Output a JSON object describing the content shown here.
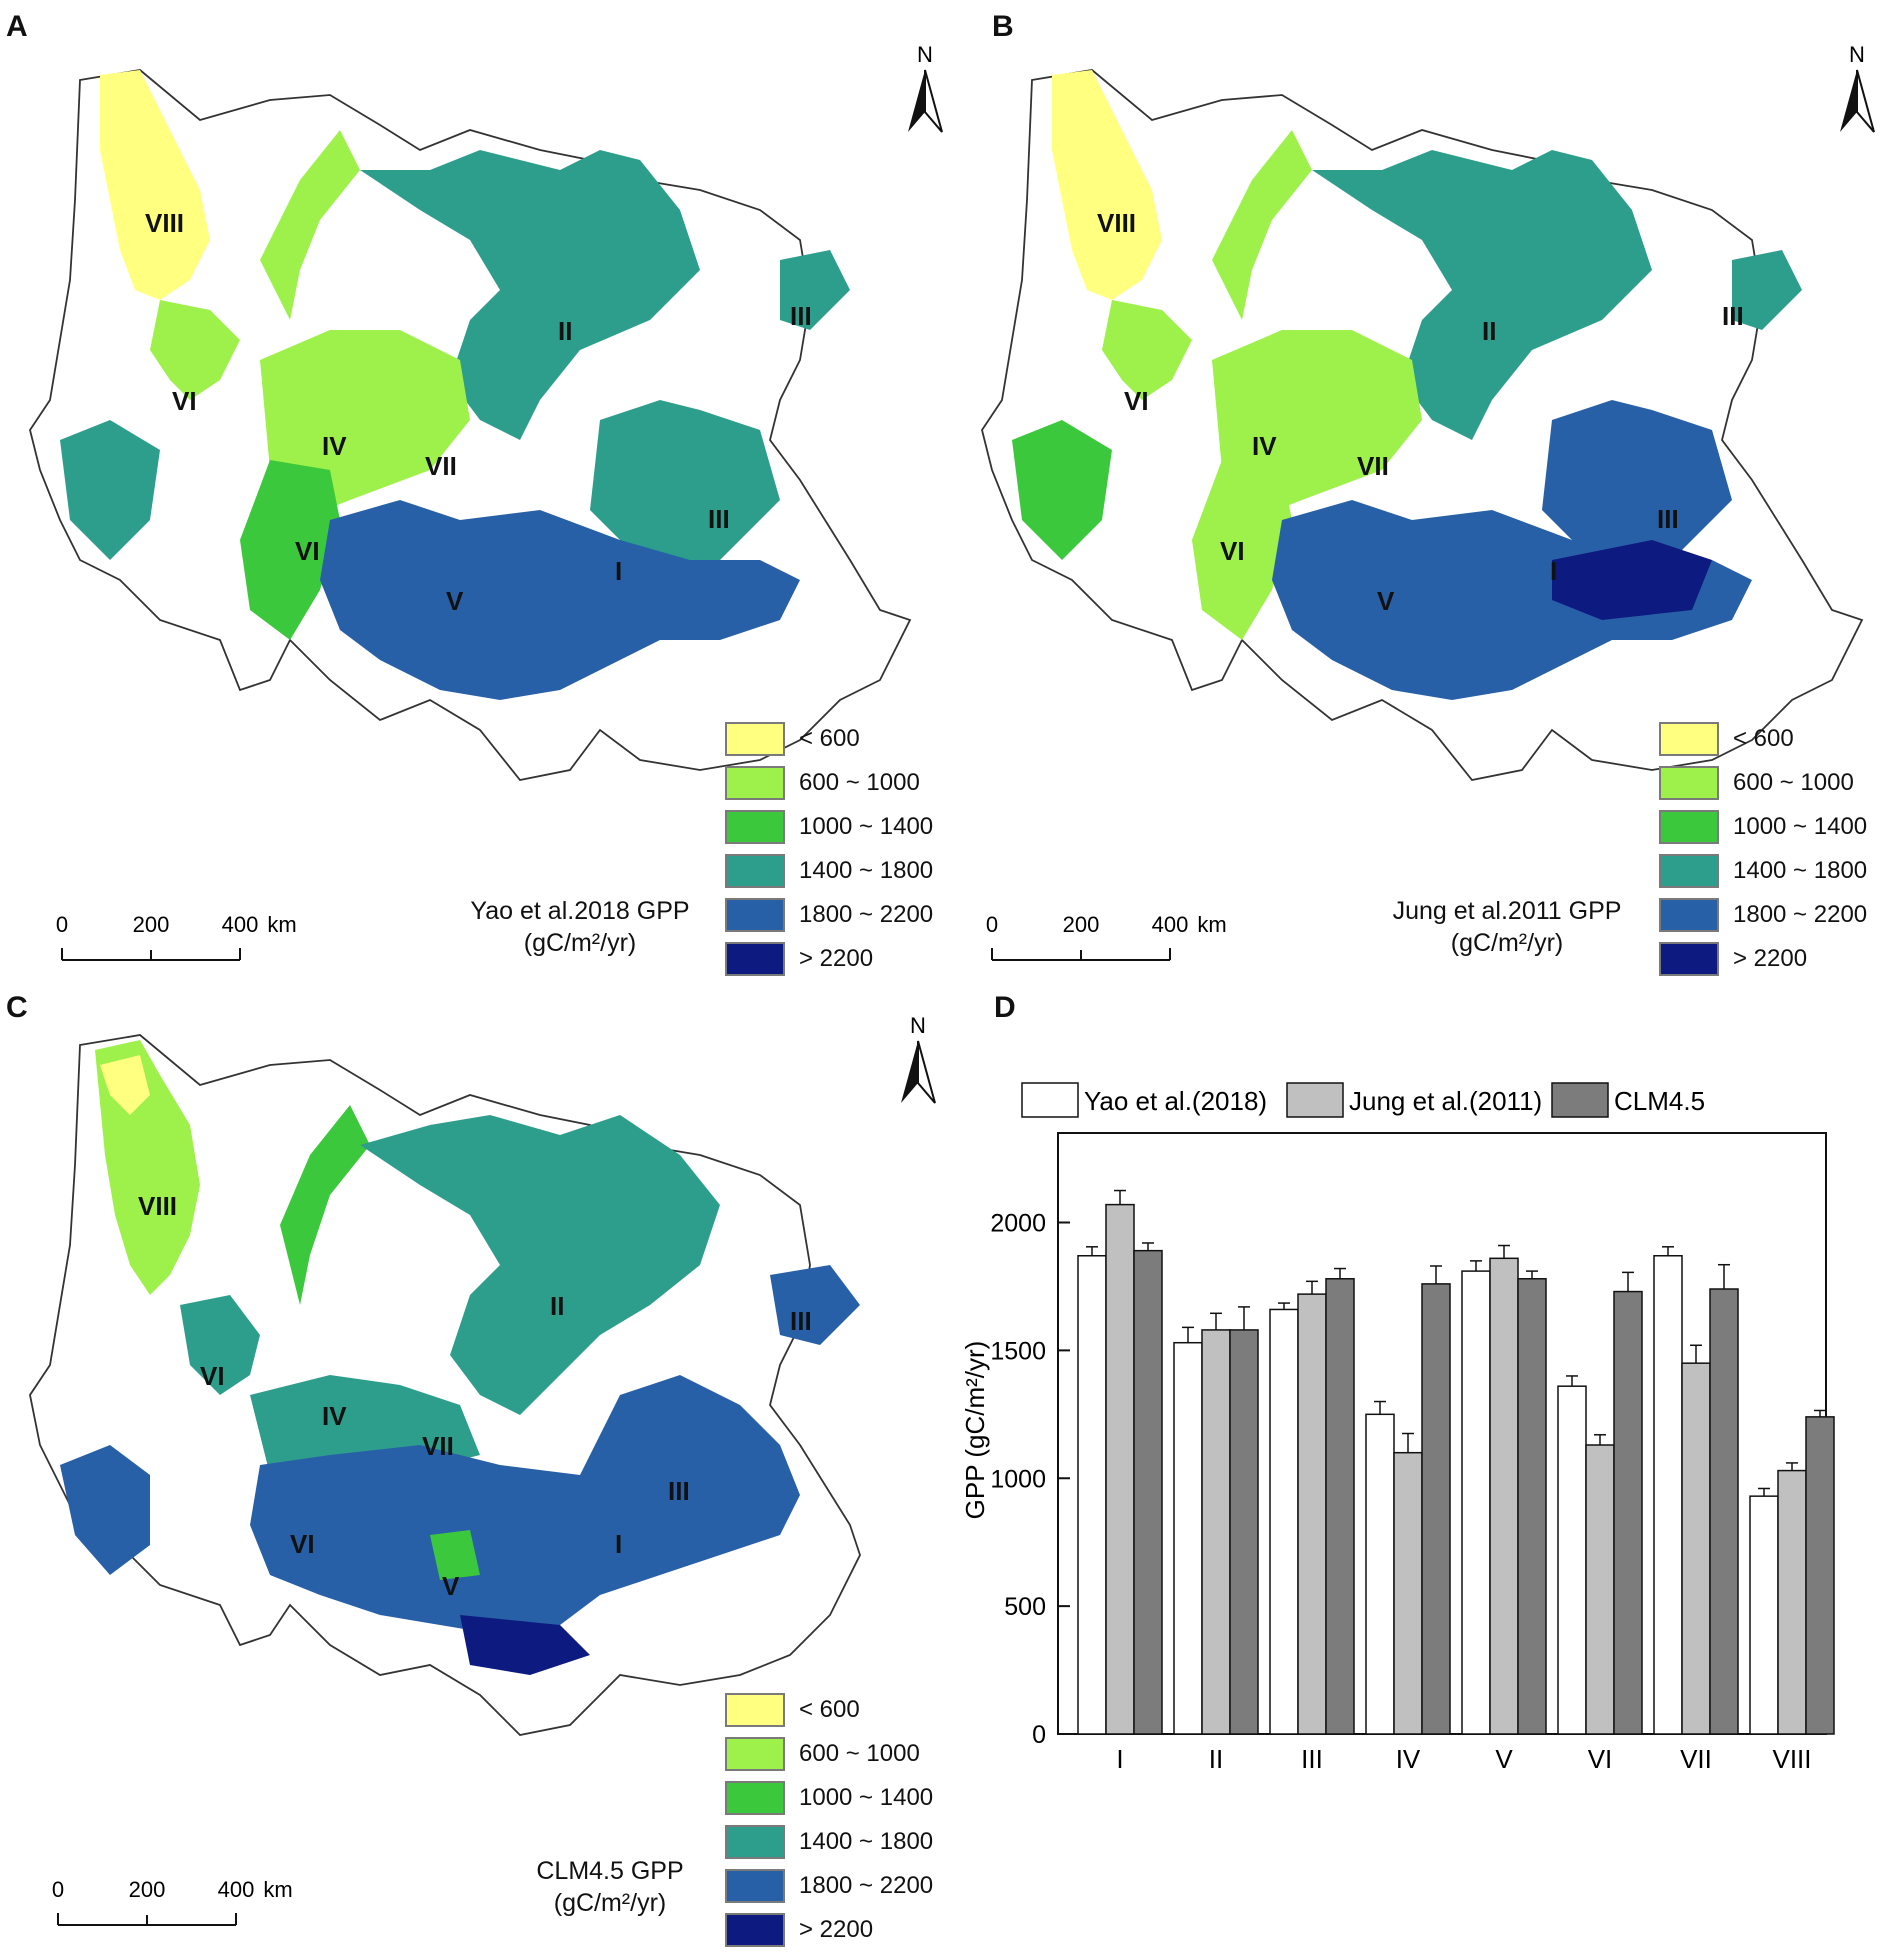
{
  "panels": {
    "a": {
      "letter": "A",
      "title_line1": "Yao et al.2018 GPP",
      "title_line2": "(gC/m²/yr)",
      "north": "N",
      "regions": [
        "VIII",
        "VI",
        "IV",
        "VII",
        "II",
        "III",
        "III",
        "VI",
        "I",
        "V"
      ]
    },
    "b": {
      "letter": "B",
      "title_line1": "Jung et al.2011 GPP",
      "title_line2": "(gC/m²/yr)",
      "north": "N",
      "regions": [
        "VIII",
        "VI",
        "IV",
        "VII",
        "II",
        "III",
        "III",
        "VI",
        "I",
        "V"
      ]
    },
    "c": {
      "letter": "C",
      "title_line1": "CLM4.5 GPP",
      "title_line2": "(gC/m²/yr)",
      "north": "N",
      "regions": [
        "VIII",
        "VI",
        "IV",
        "VII",
        "II",
        "III",
        "III",
        "VI",
        "I",
        "V"
      ]
    },
    "d": {
      "letter": "D"
    }
  },
  "legend": [
    {
      "label": "< 600",
      "color": "#ffff80"
    },
    {
      "label": "600 ~ 1000",
      "color": "#9ef04a"
    },
    {
      "label": "1000 ~ 1400",
      "color": "#3cc83c"
    },
    {
      "label": "1400 ~ 1800",
      "color": "#2e9e8c"
    },
    {
      "label": "1800 ~ 2200",
      "color": "#2860a8"
    },
    {
      "label": "> 2200",
      "color": "#0d1a80"
    }
  ],
  "scalebar": {
    "ticks": [
      "0",
      "200",
      "400"
    ],
    "unit": "km"
  },
  "chart_data": {
    "type": "bar",
    "categories": [
      "I",
      "II",
      "III",
      "IV",
      "V",
      "VI",
      "VII",
      "VIII"
    ],
    "ylabel": "GPP (gC/m²/yr)",
    "ylim": [
      0,
      2350
    ],
    "yticks": [
      0,
      500,
      1000,
      1500,
      2000
    ],
    "series": [
      {
        "name": "Yao et al.(2018)",
        "color": "#ffffff",
        "values": [
          1870,
          1530,
          1660,
          1250,
          1810,
          1360,
          1870,
          930
        ],
        "errors": [
          35,
          60,
          25,
          50,
          40,
          40,
          35,
          30
        ]
      },
      {
        "name": "Jung et al.(2011)",
        "color": "#c0c0c0",
        "values": [
          2070,
          1580,
          1720,
          1100,
          1860,
          1130,
          1450,
          1030
        ],
        "errors": [
          55,
          65,
          50,
          75,
          50,
          40,
          70,
          30
        ]
      },
      {
        "name": "CLM4.5",
        "color": "#7c7c7c",
        "values": [
          1890,
          1580,
          1780,
          1760,
          1780,
          1730,
          1740,
          1240
        ],
        "errors": [
          30,
          90,
          40,
          70,
          30,
          75,
          95,
          25
        ]
      }
    ]
  }
}
